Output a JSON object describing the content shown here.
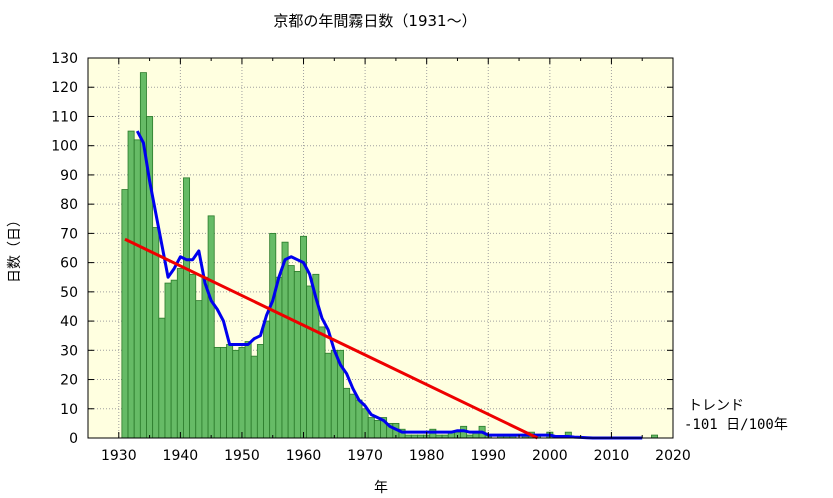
{
  "chart_data": {
    "type": "bar",
    "title": "京都の年間霧日数（1931〜）",
    "xlabel": "年",
    "ylabel": "日数（日）",
    "xlim": [
      1925,
      2020
    ],
    "ylim": [
      0,
      130
    ],
    "xticks": [
      1930,
      1940,
      1950,
      1960,
      1970,
      1980,
      1990,
      2000,
      2010,
      2020
    ],
    "yticks": [
      0,
      10,
      20,
      30,
      40,
      50,
      60,
      70,
      80,
      90,
      100,
      110,
      120,
      130
    ],
    "grid": true,
    "colors": {
      "plot_background": "#ffffe0",
      "bar_fill": "#66bb66",
      "bar_edge": "#2a7a2a",
      "moving_average": "#0000ee",
      "trend": "#ee0000"
    },
    "series": [
      {
        "type": "bar",
        "x": [
          1931,
          1932,
          1933,
          1934,
          1935,
          1936,
          1937,
          1938,
          1939,
          1940,
          1941,
          1942,
          1943,
          1944,
          1945,
          1946,
          1947,
          1948,
          1949,
          1950,
          1951,
          1952,
          1953,
          1954,
          1955,
          1956,
          1957,
          1958,
          1959,
          1960,
          1961,
          1962,
          1963,
          1964,
          1965,
          1966,
          1967,
          1968,
          1969,
          1970,
          1971,
          1972,
          1973,
          1974,
          1975,
          1976,
          1977,
          1978,
          1979,
          1980,
          1981,
          1982,
          1983,
          1984,
          1985,
          1986,
          1987,
          1988,
          1989,
          1990,
          1991,
          1992,
          1993,
          1994,
          1995,
          1996,
          1997,
          1998,
          1999,
          2000,
          2001,
          2002,
          2003,
          2004,
          2005,
          2006,
          2007,
          2008,
          2009,
          2010,
          2011,
          2012,
          2013,
          2014,
          2015,
          2016,
          2017
        ],
        "values": [
          85,
          105,
          102,
          125,
          110,
          72,
          41,
          53,
          54,
          58,
          89,
          56,
          47,
          55,
          76,
          31,
          31,
          32,
          30,
          31,
          33,
          28,
          32,
          40,
          70,
          55,
          67,
          59,
          57,
          69,
          52,
          56,
          38,
          29,
          30,
          30,
          17,
          15,
          13,
          10,
          7,
          6,
          7,
          5,
          5,
          3,
          1,
          1,
          1,
          1,
          3,
          1,
          1,
          2,
          2,
          4,
          1,
          2,
          4,
          1,
          0,
          1,
          1,
          1,
          0,
          1,
          2,
          1,
          0,
          2,
          0,
          0,
          2,
          0,
          0,
          0,
          0,
          0,
          0,
          0,
          0,
          0,
          0,
          0,
          0,
          0,
          1
        ]
      },
      {
        "type": "line",
        "x": [
          1933,
          1934,
          1935,
          1936,
          1937,
          1938,
          1939,
          1940,
          1941,
          1942,
          1943,
          1944,
          1945,
          1946,
          1947,
          1948,
          1949,
          1950,
          1951,
          1952,
          1953,
          1954,
          1955,
          1956,
          1957,
          1958,
          1959,
          1960,
          1961,
          1962,
          1963,
          1964,
          1965,
          1966,
          1967,
          1968,
          1969,
          1970,
          1971,
          1972,
          1973,
          1974,
          1975,
          1976,
          1977,
          1978,
          1979,
          1980,
          1981,
          1982,
          1983,
          1984,
          1985,
          1986,
          1987,
          1988,
          1989,
          1990,
          1991,
          1992,
          1993,
          1994,
          1995,
          1996,
          1997,
          1998,
          1999,
          2000,
          2001,
          2002,
          2003,
          2004,
          2005,
          2006,
          2007,
          2008,
          2009,
          2010,
          2011,
          2012,
          2013,
          2014,
          2015
        ],
        "values": [
          105,
          101,
          88,
          77,
          66,
          55,
          58,
          62,
          61,
          61,
          64,
          53,
          47,
          44,
          40,
          32,
          32,
          32,
          32,
          34,
          35,
          42,
          47,
          55,
          61,
          62,
          61,
          60,
          56,
          48,
          41,
          37,
          30,
          25,
          22,
          17,
          13,
          11,
          8,
          7,
          6,
          4,
          3,
          2,
          2,
          2,
          2,
          2,
          2,
          2,
          2,
          2,
          2.5,
          2.5,
          2,
          2,
          2,
          1,
          1,
          1,
          1,
          1,
          1,
          1,
          1,
          1,
          1,
          1,
          0.5,
          0.5,
          0.5,
          0.3,
          0.2,
          0.1,
          0,
          0,
          0,
          0,
          0,
          0,
          0,
          0,
          0
        ]
      },
      {
        "type": "line",
        "x": [
          1931,
          1998
        ],
        "values": [
          68,
          0
        ]
      }
    ],
    "annotation": {
      "line1": "トレンド",
      "line2": "-101 日/100年"
    }
  }
}
